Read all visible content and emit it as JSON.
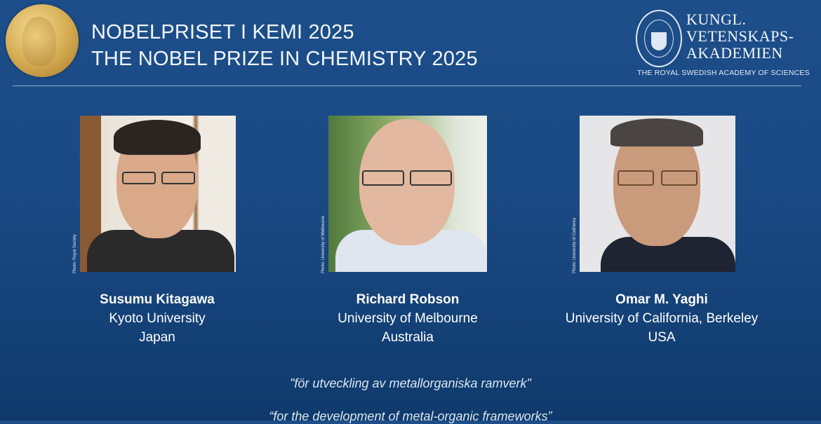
{
  "header": {
    "title_sv": "NOBELPRISET I KEMI 2025",
    "title_en": "THE NOBEL PRIZE IN CHEMISTRY 2025",
    "academy_lines": [
      "KUNGL.",
      "VETENSKAPS-",
      "AKADEMIEN"
    ],
    "academy_en": "THE ROYAL SWEDISH ACADEMY OF SCIENCES"
  },
  "laureates": [
    {
      "name": "Susumu Kitagawa",
      "affiliation": "Kyoto University",
      "country": "Japan",
      "photo_credit": "Photo: Royal Society"
    },
    {
      "name": "Richard Robson",
      "affiliation": "University of Melbourne",
      "country": "Australia",
      "photo_credit": "Photo: University of Melbourne"
    },
    {
      "name": "Omar M. Yaghi",
      "affiliation": "University of California, Berkeley",
      "country": "USA",
      "photo_credit": "Photo: University of California"
    }
  ],
  "motivation": {
    "sv": "\"för utveckling av metallorganiska ramverk\"",
    "en": "“for the development of metal-organic frameworks”"
  },
  "colors": {
    "background": "#1a4a84",
    "medal": "#d2a94f",
    "text": "#ffffff"
  }
}
